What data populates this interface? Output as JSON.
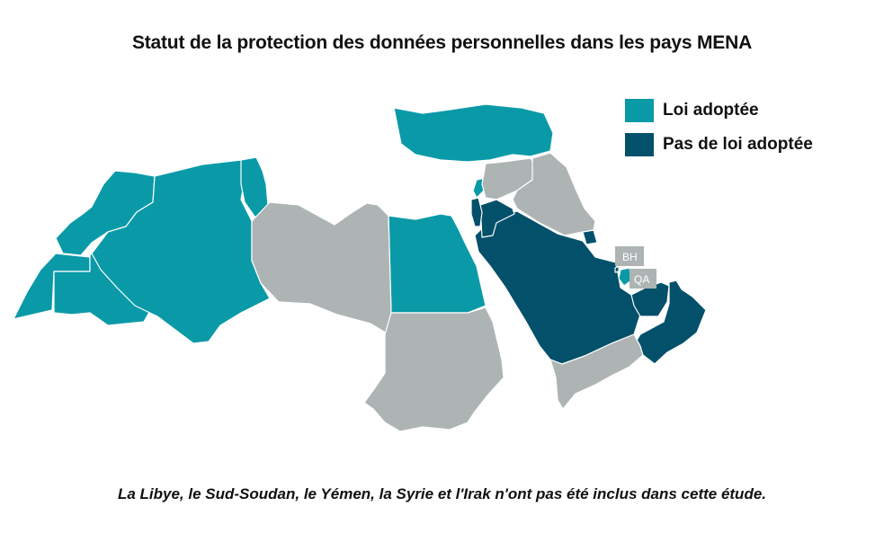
{
  "title": "Statut de la protection des données personnelles dans les pays MENA",
  "legend": [
    {
      "label": "Loi adoptée",
      "color": "#0a9aa7"
    },
    {
      "label": "Pas de loi adoptée",
      "color": "#03506b"
    }
  ],
  "colors": {
    "not_included": "#aeb4b4",
    "border": "#ffffff"
  },
  "callouts": {
    "bahrain": "BH",
    "qatar": "QA"
  },
  "note": "La Libye, le Sud-Soudan, le Yémen, la Syrie et l'Irak n'ont pas été inclus dans cette étude."
}
